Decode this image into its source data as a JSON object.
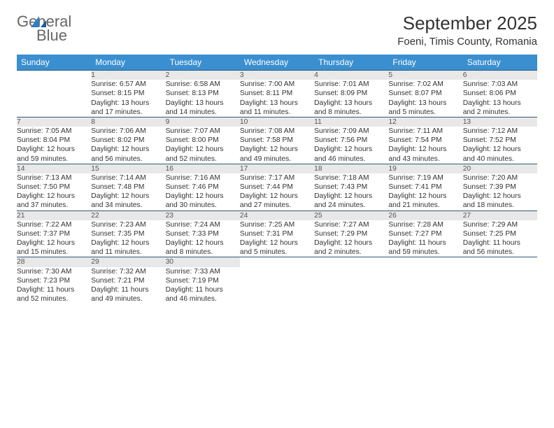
{
  "logo": {
    "line1": "General",
    "line2": "Blue"
  },
  "title": "September 2025",
  "location": "Foeni, Timis County, Romania",
  "colors": {
    "header_bg": "#3a8fd0",
    "header_text": "#ffffff",
    "daynum_bg": "#e8e8e8",
    "row_separator": "#2f5a7a",
    "text": "#333333",
    "logo_gray": "#666666",
    "logo_blue": "#2f7fc1",
    "page_bg": "#ffffff"
  },
  "day_headers": [
    "Sunday",
    "Monday",
    "Tuesday",
    "Wednesday",
    "Thursday",
    "Friday",
    "Saturday"
  ],
  "weeks": [
    [
      null,
      {
        "n": "1",
        "sr": "Sunrise: 6:57 AM",
        "ss": "Sunset: 8:15 PM",
        "d1": "Daylight: 13 hours",
        "d2": "and 17 minutes."
      },
      {
        "n": "2",
        "sr": "Sunrise: 6:58 AM",
        "ss": "Sunset: 8:13 PM",
        "d1": "Daylight: 13 hours",
        "d2": "and 14 minutes."
      },
      {
        "n": "3",
        "sr": "Sunrise: 7:00 AM",
        "ss": "Sunset: 8:11 PM",
        "d1": "Daylight: 13 hours",
        "d2": "and 11 minutes."
      },
      {
        "n": "4",
        "sr": "Sunrise: 7:01 AM",
        "ss": "Sunset: 8:09 PM",
        "d1": "Daylight: 13 hours",
        "d2": "and 8 minutes."
      },
      {
        "n": "5",
        "sr": "Sunrise: 7:02 AM",
        "ss": "Sunset: 8:07 PM",
        "d1": "Daylight: 13 hours",
        "d2": "and 5 minutes."
      },
      {
        "n": "6",
        "sr": "Sunrise: 7:03 AM",
        "ss": "Sunset: 8:06 PM",
        "d1": "Daylight: 13 hours",
        "d2": "and 2 minutes."
      }
    ],
    [
      {
        "n": "7",
        "sr": "Sunrise: 7:05 AM",
        "ss": "Sunset: 8:04 PM",
        "d1": "Daylight: 12 hours",
        "d2": "and 59 minutes."
      },
      {
        "n": "8",
        "sr": "Sunrise: 7:06 AM",
        "ss": "Sunset: 8:02 PM",
        "d1": "Daylight: 12 hours",
        "d2": "and 56 minutes."
      },
      {
        "n": "9",
        "sr": "Sunrise: 7:07 AM",
        "ss": "Sunset: 8:00 PM",
        "d1": "Daylight: 12 hours",
        "d2": "and 52 minutes."
      },
      {
        "n": "10",
        "sr": "Sunrise: 7:08 AM",
        "ss": "Sunset: 7:58 PM",
        "d1": "Daylight: 12 hours",
        "d2": "and 49 minutes."
      },
      {
        "n": "11",
        "sr": "Sunrise: 7:09 AM",
        "ss": "Sunset: 7:56 PM",
        "d1": "Daylight: 12 hours",
        "d2": "and 46 minutes."
      },
      {
        "n": "12",
        "sr": "Sunrise: 7:11 AM",
        "ss": "Sunset: 7:54 PM",
        "d1": "Daylight: 12 hours",
        "d2": "and 43 minutes."
      },
      {
        "n": "13",
        "sr": "Sunrise: 7:12 AM",
        "ss": "Sunset: 7:52 PM",
        "d1": "Daylight: 12 hours",
        "d2": "and 40 minutes."
      }
    ],
    [
      {
        "n": "14",
        "sr": "Sunrise: 7:13 AM",
        "ss": "Sunset: 7:50 PM",
        "d1": "Daylight: 12 hours",
        "d2": "and 37 minutes."
      },
      {
        "n": "15",
        "sr": "Sunrise: 7:14 AM",
        "ss": "Sunset: 7:48 PM",
        "d1": "Daylight: 12 hours",
        "d2": "and 34 minutes."
      },
      {
        "n": "16",
        "sr": "Sunrise: 7:16 AM",
        "ss": "Sunset: 7:46 PM",
        "d1": "Daylight: 12 hours",
        "d2": "and 30 minutes."
      },
      {
        "n": "17",
        "sr": "Sunrise: 7:17 AM",
        "ss": "Sunset: 7:44 PM",
        "d1": "Daylight: 12 hours",
        "d2": "and 27 minutes."
      },
      {
        "n": "18",
        "sr": "Sunrise: 7:18 AM",
        "ss": "Sunset: 7:43 PM",
        "d1": "Daylight: 12 hours",
        "d2": "and 24 minutes."
      },
      {
        "n": "19",
        "sr": "Sunrise: 7:19 AM",
        "ss": "Sunset: 7:41 PM",
        "d1": "Daylight: 12 hours",
        "d2": "and 21 minutes."
      },
      {
        "n": "20",
        "sr": "Sunrise: 7:20 AM",
        "ss": "Sunset: 7:39 PM",
        "d1": "Daylight: 12 hours",
        "d2": "and 18 minutes."
      }
    ],
    [
      {
        "n": "21",
        "sr": "Sunrise: 7:22 AM",
        "ss": "Sunset: 7:37 PM",
        "d1": "Daylight: 12 hours",
        "d2": "and 15 minutes."
      },
      {
        "n": "22",
        "sr": "Sunrise: 7:23 AM",
        "ss": "Sunset: 7:35 PM",
        "d1": "Daylight: 12 hours",
        "d2": "and 11 minutes."
      },
      {
        "n": "23",
        "sr": "Sunrise: 7:24 AM",
        "ss": "Sunset: 7:33 PM",
        "d1": "Daylight: 12 hours",
        "d2": "and 8 minutes."
      },
      {
        "n": "24",
        "sr": "Sunrise: 7:25 AM",
        "ss": "Sunset: 7:31 PM",
        "d1": "Daylight: 12 hours",
        "d2": "and 5 minutes."
      },
      {
        "n": "25",
        "sr": "Sunrise: 7:27 AM",
        "ss": "Sunset: 7:29 PM",
        "d1": "Daylight: 12 hours",
        "d2": "and 2 minutes."
      },
      {
        "n": "26",
        "sr": "Sunrise: 7:28 AM",
        "ss": "Sunset: 7:27 PM",
        "d1": "Daylight: 11 hours",
        "d2": "and 59 minutes."
      },
      {
        "n": "27",
        "sr": "Sunrise: 7:29 AM",
        "ss": "Sunset: 7:25 PM",
        "d1": "Daylight: 11 hours",
        "d2": "and 56 minutes."
      }
    ],
    [
      {
        "n": "28",
        "sr": "Sunrise: 7:30 AM",
        "ss": "Sunset: 7:23 PM",
        "d1": "Daylight: 11 hours",
        "d2": "and 52 minutes."
      },
      {
        "n": "29",
        "sr": "Sunrise: 7:32 AM",
        "ss": "Sunset: 7:21 PM",
        "d1": "Daylight: 11 hours",
        "d2": "and 49 minutes."
      },
      {
        "n": "30",
        "sr": "Sunrise: 7:33 AM",
        "ss": "Sunset: 7:19 PM",
        "d1": "Daylight: 11 hours",
        "d2": "and 46 minutes."
      },
      null,
      null,
      null,
      null
    ]
  ]
}
